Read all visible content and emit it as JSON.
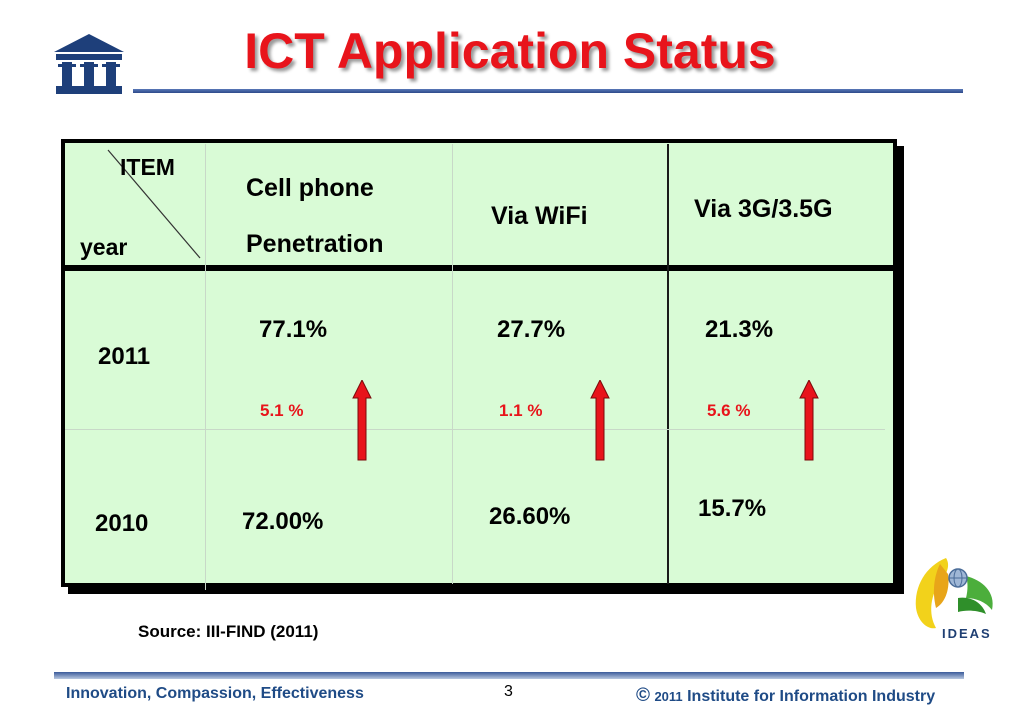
{
  "header": {
    "title": "ICT Application Status",
    "logo": "III"
  },
  "table": {
    "corner_top": "ITEM",
    "corner_bottom": "year",
    "columns": [
      {
        "line1": "Cell phone",
        "line2": "Penetration"
      },
      {
        "line1": "Via WiFi"
      },
      {
        "line1": "Via 3G/3.5G"
      }
    ],
    "rows": [
      {
        "year": "2011",
        "values": [
          "77.1%",
          "27.7%",
          "21.3%"
        ]
      },
      {
        "year": "2010",
        "values": [
          "72.00%",
          "26.60%",
          "15.7%"
        ]
      }
    ],
    "changes": [
      "5.1 %",
      "1.1 %",
      "5.6 %"
    ]
  },
  "source": "Source: III-FIND (2011)",
  "footer": {
    "left": "Innovation, Compassion, Effectiveness",
    "page": "3",
    "copyright_symbol": "©",
    "year": "2011",
    "org": "Institute for Information Industry"
  },
  "ideas_logo": "IDEAS",
  "colors": {
    "title": "#e8141b",
    "table_bg": "#d9fbd6",
    "arrow": "#e8141b",
    "footer_text": "#1f4b86"
  },
  "icons": [
    "iii-building-logo",
    "up-arrow-icon",
    "ideas-logo"
  ]
}
